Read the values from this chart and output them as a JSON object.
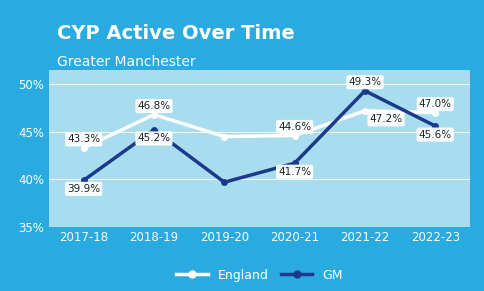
{
  "title": "CYP Active Over Time",
  "subtitle": "Greater Manchester",
  "background_color": "#29ABE2",
  "plot_bg_color": "#A8DCEF",
  "categories": [
    "2017-18",
    "2018-19",
    "2019-20",
    "2020-21",
    "2021-22",
    "2022-23"
  ],
  "england_values": [
    43.3,
    46.8,
    44.5,
    44.6,
    47.2,
    47.0
  ],
  "gm_values": [
    39.9,
    45.2,
    39.7,
    41.7,
    49.3,
    45.6
  ],
  "england_color": "#FFFFFF",
  "gm_color": "#1B3A8C",
  "ylim": [
    35,
    51.5
  ],
  "yticks": [
    35,
    40,
    45,
    50
  ],
  "ytick_labels": [
    "35%",
    "40%",
    "45%",
    "50%"
  ],
  "legend_england": "England",
  "legend_gm": "GM",
  "title_fontsize": 14,
  "subtitle_fontsize": 10,
  "label_fontsize": 7.5,
  "axis_fontsize": 8.5,
  "grid_color": "#FFFFFF",
  "england_annotate": {
    "0": [
      "43.3%",
      0,
      0.9
    ],
    "1": [
      "46.8%",
      0,
      0.9
    ],
    "3": [
      "44.6%",
      0,
      0.9
    ],
    "4": [
      "47.2%",
      0.3,
      -0.9
    ],
    "5": [
      "47.0%",
      0,
      0.9
    ]
  },
  "gm_annotate": {
    "0": [
      "39.9%",
      0,
      -0.9
    ],
    "1": [
      "45.2%",
      0,
      -0.9
    ],
    "3": [
      "41.7%",
      0,
      -0.9
    ],
    "4": [
      "49.3%",
      0,
      0.9
    ],
    "5": [
      "45.6%",
      0,
      -0.9
    ]
  }
}
